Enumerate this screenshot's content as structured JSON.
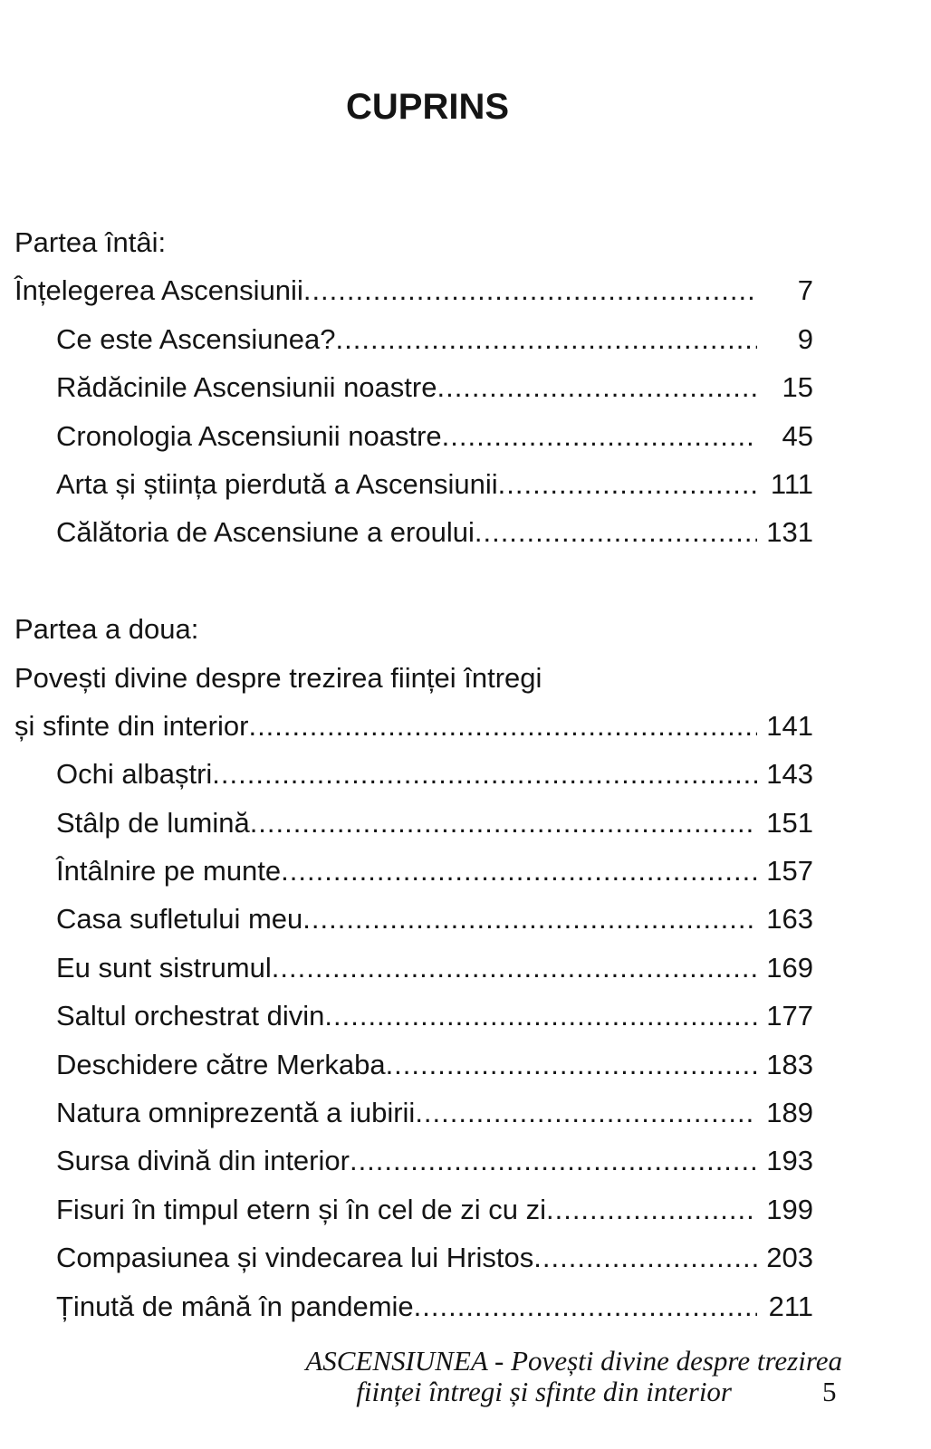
{
  "title": "CUPRINS",
  "part1": {
    "label": "Partea întâi:",
    "heading": "Înțelegerea Ascensiunii",
    "heading_page": "7",
    "items": [
      {
        "label": "Ce este Ascensiunea?",
        "page": "9"
      },
      {
        "label": "Rădăcinile Ascensiunii noastre",
        "page": "15"
      },
      {
        "label": "Cronologia Ascensiunii noastre",
        "page": "45"
      },
      {
        "label": "Arta și știința pierdută a Ascensiunii",
        "page": "111"
      },
      {
        "label": "Călătoria de Ascensiune a eroului",
        "page": "131"
      }
    ]
  },
  "part2": {
    "label": "Partea a doua:",
    "heading_line1": "Povești divine despre trezirea ființei întregi",
    "heading_line2": "și sfinte din interior",
    "heading_page": "141",
    "items": [
      {
        "label": "Ochi albaștri",
        "page": "143"
      },
      {
        "label": "Stâlp de lumină",
        "page": "151"
      },
      {
        "label": "Întâlnire pe munte",
        "page": "157"
      },
      {
        "label": "Casa sufletului meu",
        "page": "163"
      },
      {
        "label": "Eu sunt sistrumul",
        "page": "169"
      },
      {
        "label": "Saltul orchestrat divin",
        "page": "177"
      },
      {
        "label": "Deschidere către Merkaba",
        "page": "183"
      },
      {
        "label": "Natura omniprezentă a iubirii",
        "page": "189"
      },
      {
        "label": "Sursa divină din interior",
        "page": "193"
      },
      {
        "label": "Fisuri în timpul etern și în cel de zi cu zi",
        "page": "199"
      },
      {
        "label": "Compasiunea și vindecarea lui Hristos",
        "page": "203"
      },
      {
        "label": "Ținută de mână în pandemie",
        "page": "211"
      }
    ]
  },
  "footer": {
    "line1": "ASCENSIUNEA - Povești divine despre trezirea",
    "line2": "ființei întregi și sfinte din interior",
    "page_number": "5"
  }
}
